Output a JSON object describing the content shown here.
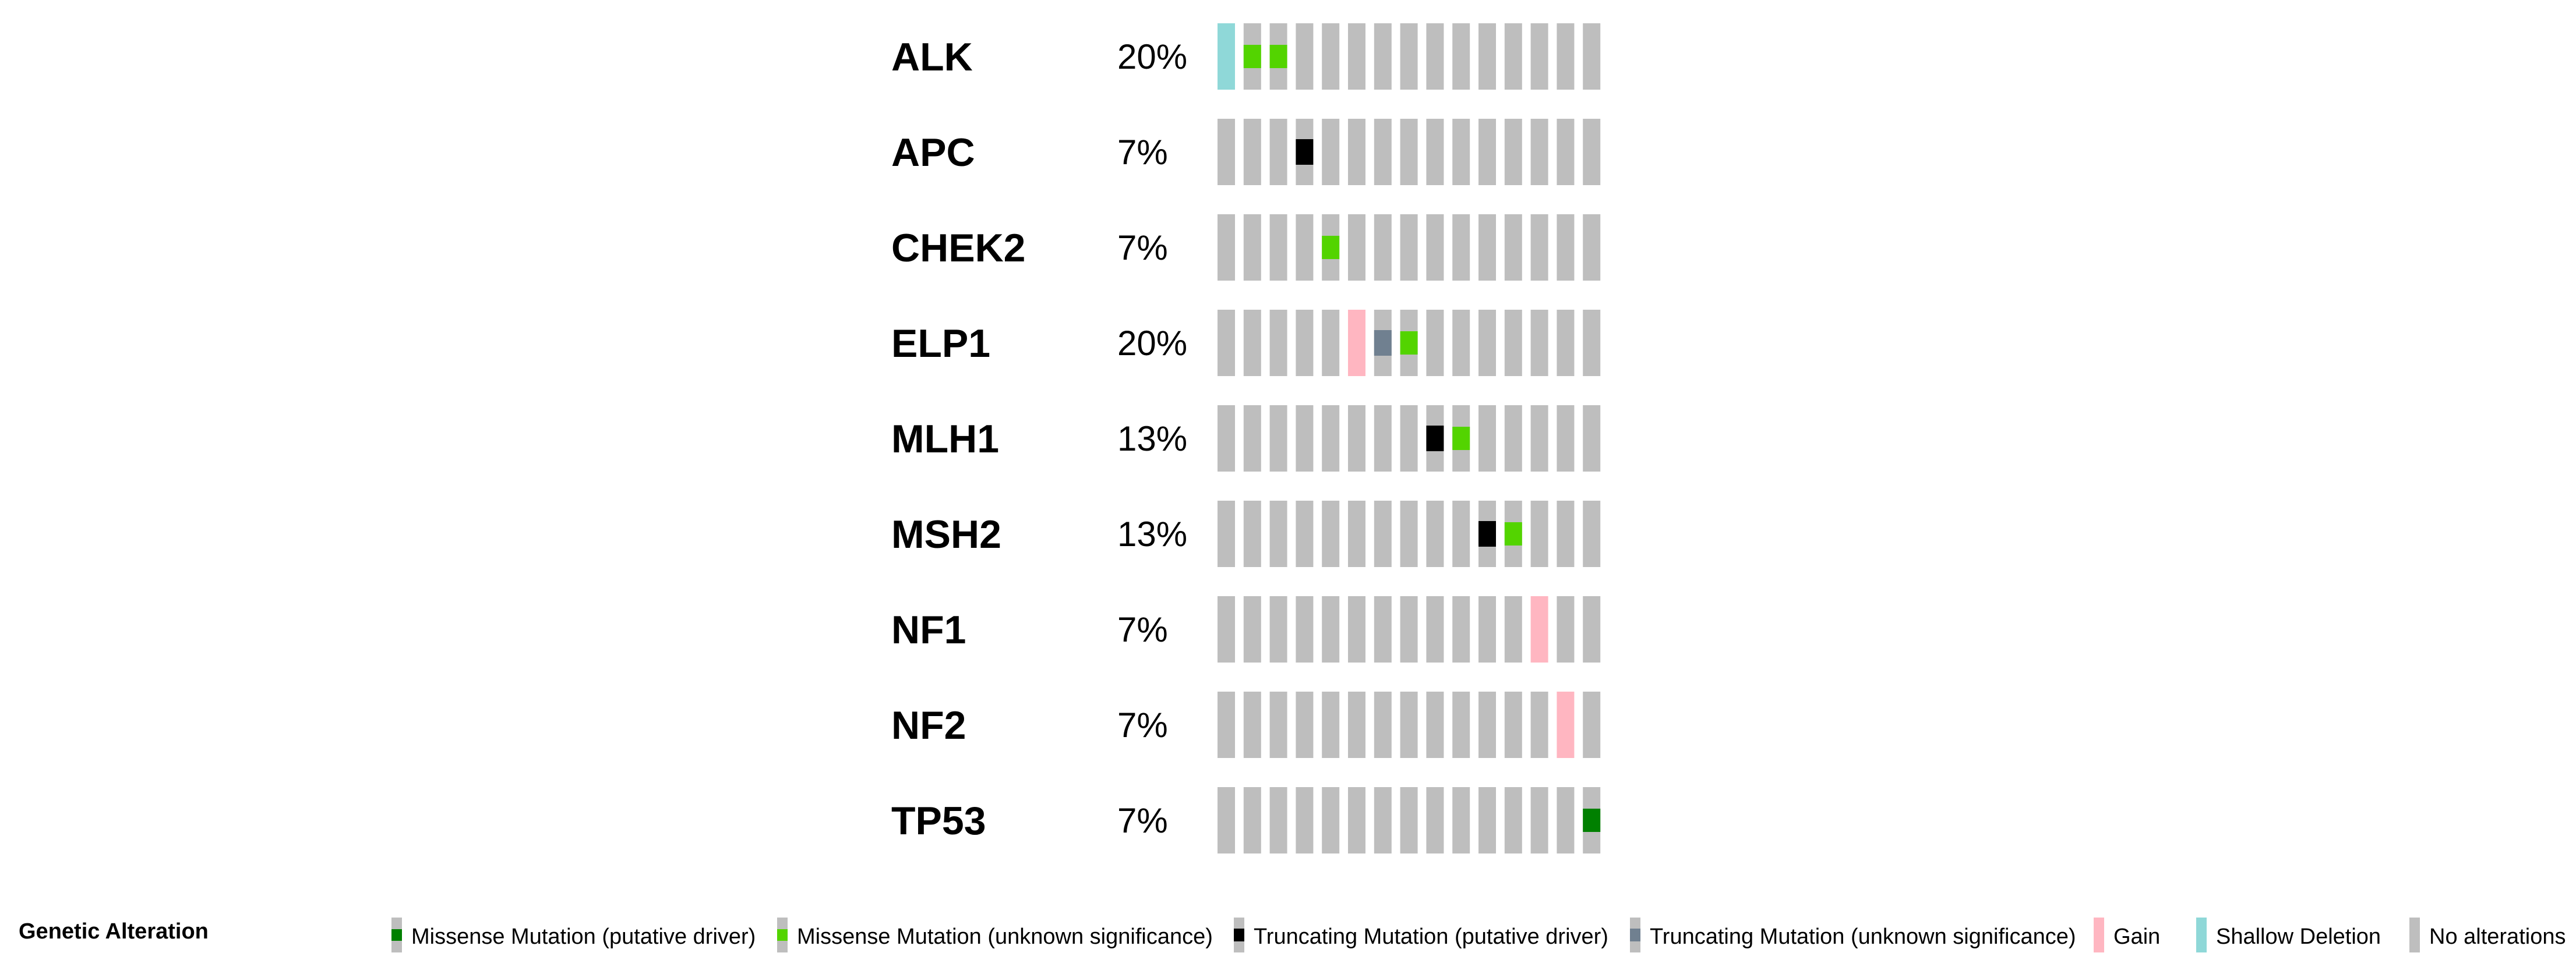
{
  "chart_data": {
    "type": "oncoprint",
    "sample_count": 15,
    "genes": [
      {
        "gene": "ALK",
        "percent": "20%",
        "alterations": [
          {
            "sample": 0,
            "type": "shallow_deletion"
          },
          {
            "sample": 1,
            "type": "missense_unknown"
          },
          {
            "sample": 2,
            "type": "missense_unknown"
          }
        ]
      },
      {
        "gene": "APC",
        "percent": "7%",
        "alterations": [
          {
            "sample": 3,
            "type": "truncating_driver"
          }
        ]
      },
      {
        "gene": "CHEK2",
        "percent": "7%",
        "alterations": [
          {
            "sample": 4,
            "type": "missense_unknown"
          }
        ]
      },
      {
        "gene": "ELP1",
        "percent": "20%",
        "alterations": [
          {
            "sample": 5,
            "type": "gain"
          },
          {
            "sample": 6,
            "type": "truncating_unknown"
          },
          {
            "sample": 7,
            "type": "missense_unknown"
          }
        ]
      },
      {
        "gene": "MLH1",
        "percent": "13%",
        "alterations": [
          {
            "sample": 8,
            "type": "truncating_driver"
          },
          {
            "sample": 9,
            "type": "missense_unknown"
          }
        ]
      },
      {
        "gene": "MSH2",
        "percent": "13%",
        "alterations": [
          {
            "sample": 10,
            "type": "truncating_driver"
          },
          {
            "sample": 11,
            "type": "missense_unknown"
          }
        ]
      },
      {
        "gene": "NF1",
        "percent": "7%",
        "alterations": [
          {
            "sample": 12,
            "type": "gain"
          }
        ]
      },
      {
        "gene": "NF2",
        "percent": "7%",
        "alterations": [
          {
            "sample": 13,
            "type": "gain"
          }
        ]
      },
      {
        "gene": "TP53",
        "percent": "7%",
        "alterations": [
          {
            "sample": 14,
            "type": "missense_driver"
          }
        ]
      }
    ],
    "legend": {
      "title": "Genetic Alteration",
      "items": [
        {
          "key": "missense_driver",
          "label": "Missense Mutation (putative driver)"
        },
        {
          "key": "missense_unknown",
          "label": "Missense Mutation (unknown significance)"
        },
        {
          "key": "truncating_driver",
          "label": "Truncating Mutation (putative driver)"
        },
        {
          "key": "truncating_unknown",
          "label": "Truncating Mutation (unknown significance)"
        },
        {
          "key": "gain",
          "label": "Gain"
        },
        {
          "key": "shallow_deletion",
          "label": "Shallow Deletion"
        },
        {
          "key": "none",
          "label": "No alterations"
        }
      ]
    },
    "colors": {
      "none": "#bebebe",
      "missense_driver": "#008000",
      "missense_unknown": "#53d400",
      "truncating_driver": "#000000",
      "truncating_unknown": "#708090",
      "gain": "#ffb6c1",
      "shallow_deletion": "#8fd8d8"
    }
  }
}
